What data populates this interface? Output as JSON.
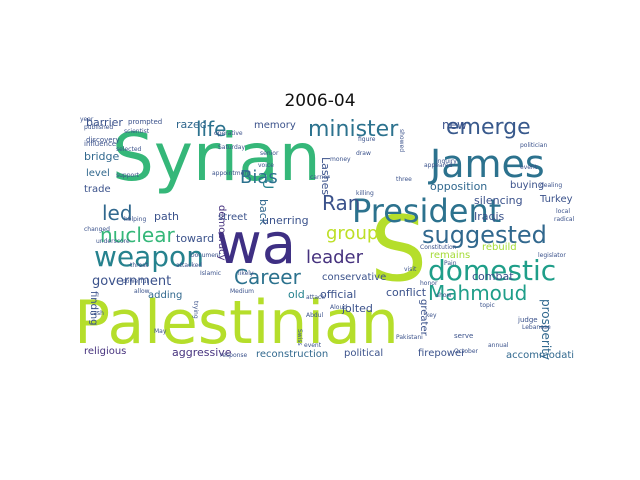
{
  "title": "2006-04",
  "words": [
    {
      "text": "Palestinian",
      "color": "#b5de2b"
    },
    {
      "text": "Syrian",
      "color": "#35b779"
    },
    {
      "text": "wa",
      "color": "#3e2f83"
    },
    {
      "text": "S",
      "color": "#b5de2b"
    },
    {
      "text": "James",
      "color": "#2c728e"
    },
    {
      "text": "President",
      "color": "#2c728e"
    },
    {
      "text": "domestic",
      "color": "#1f9e89"
    },
    {
      "text": "weapon",
      "color": "#26828e"
    },
    {
      "text": "suggested",
      "color": "#31688e"
    },
    {
      "text": "emerge",
      "color": "#38598c"
    },
    {
      "text": "minister",
      "color": "#2c728e"
    },
    {
      "text": "life",
      "color": "#2c728e"
    },
    {
      "text": "Career",
      "color": "#2c728e"
    },
    {
      "text": "nuclear",
      "color": "#35b779"
    },
    {
      "text": "Mahmoud",
      "color": "#1f9e89"
    },
    {
      "text": "led",
      "color": "#31688e"
    },
    {
      "text": "Ran",
      "color": "#3b528b"
    },
    {
      "text": "Bias",
      "color": "#2c728e"
    },
    {
      "text": "group",
      "color": "#bddf26"
    },
    {
      "text": "leader",
      "color": "#46327e"
    },
    {
      "text": "government",
      "color": "#3b528b"
    },
    {
      "text": "U",
      "color": "#26828e"
    },
    {
      "text": "barrier",
      "color": "#3b528b"
    },
    {
      "text": "razed",
      "color": "#31688e"
    },
    {
      "text": "memory",
      "color": "#3b528b"
    },
    {
      "text": "new",
      "color": "#3b528b"
    },
    {
      "text": "bridge",
      "color": "#31688e"
    },
    {
      "text": "level",
      "color": "#31688e"
    },
    {
      "text": "trade",
      "color": "#3b528b"
    },
    {
      "text": "path",
      "color": "#3b528b"
    },
    {
      "text": "toward",
      "color": "#3b528b"
    },
    {
      "text": "democracy",
      "color": "#46327e"
    },
    {
      "text": "street",
      "color": "#3b528b"
    },
    {
      "text": "back",
      "color": "#31688e"
    },
    {
      "text": "unerring",
      "color": "#3b528b"
    },
    {
      "text": "Lashes",
      "color": "#3b528b"
    },
    {
      "text": "opposition",
      "color": "#31688e"
    },
    {
      "text": "buying",
      "color": "#3b528b"
    },
    {
      "text": "Turkey",
      "color": "#3b528b"
    },
    {
      "text": "silencing",
      "color": "#3b528b"
    },
    {
      "text": "Iraqis",
      "color": "#3b528b"
    },
    {
      "text": "rebuild",
      "color": "#a5db36"
    },
    {
      "text": "remains",
      "color": "#a5db36"
    },
    {
      "text": "combat",
      "color": "#3b528b"
    },
    {
      "text": "conservative",
      "color": "#3b528b"
    },
    {
      "text": "official",
      "color": "#3b528b"
    },
    {
      "text": "old",
      "color": "#26828e"
    },
    {
      "text": "adding",
      "color": "#31688e"
    },
    {
      "text": "finding",
      "color": "#3b528b"
    },
    {
      "text": "conflict",
      "color": "#3b528b"
    },
    {
      "text": "jolted",
      "color": "#3b528b"
    },
    {
      "text": "greater",
      "color": "#3b528b"
    },
    {
      "text": "prosperity",
      "color": "#31688e"
    },
    {
      "text": "religious",
      "color": "#46327e"
    },
    {
      "text": "aggressive",
      "color": "#46327e"
    },
    {
      "text": "reconstruction",
      "color": "#31688e"
    },
    {
      "text": "political",
      "color": "#3b528b"
    },
    {
      "text": "firepower",
      "color": "#3b528b"
    },
    {
      "text": "accommodation",
      "color": "#31688e"
    },
    {
      "text": "prompted",
      "color": "#3b528b"
    },
    {
      "text": "discovery",
      "color": "#3b528b"
    },
    {
      "text": "influence",
      "color": "#3b528b"
    },
    {
      "text": "published",
      "color": "#3b528b"
    },
    {
      "text": "changed",
      "color": "#3b528b"
    },
    {
      "text": "helping",
      "color": "#3b528b"
    },
    {
      "text": "support",
      "color": "#3b528b"
    },
    {
      "text": "threat",
      "color": "#3b528b"
    },
    {
      "text": "attacked",
      "color": "#3b528b"
    },
    {
      "text": "powerful",
      "color": "#3b528b"
    },
    {
      "text": "Islamic",
      "color": "#3b528b"
    },
    {
      "text": "likely",
      "color": "#3b528b"
    },
    {
      "text": "attack",
      "color": "#3b528b"
    },
    {
      "text": "honor",
      "color": "#3b528b"
    },
    {
      "text": "show",
      "color": "#3b528b"
    },
    {
      "text": "key",
      "color": "#3b528b"
    },
    {
      "text": "visit",
      "color": "#3b528b"
    },
    {
      "text": "Constitution",
      "color": "#3b528b"
    },
    {
      "text": "inquiry",
      "color": "#3b528b"
    },
    {
      "text": "appeared",
      "color": "#3b528b"
    },
    {
      "text": "carrier",
      "color": "#3b528b"
    },
    {
      "text": "voice",
      "color": "#3b528b"
    },
    {
      "text": "senior",
      "color": "#3b528b"
    },
    {
      "text": "killing",
      "color": "#3b528b"
    },
    {
      "text": "money",
      "color": "#3b528b"
    },
    {
      "text": "judge",
      "color": "#3b528b"
    },
    {
      "text": "radical",
      "color": "#3b528b"
    },
    {
      "text": "local",
      "color": "#3b528b"
    },
    {
      "text": "dealing",
      "color": "#3b528b"
    },
    {
      "text": "Lebanese",
      "color": "#3b528b"
    },
    {
      "text": "annual",
      "color": "#3b528b"
    },
    {
      "text": "serve",
      "color": "#3b528b"
    },
    {
      "text": "Document",
      "color": "#3b528b"
    },
    {
      "text": "appointment",
      "color": "#3b528b"
    },
    {
      "text": "Abdul",
      "color": "#3b528b"
    },
    {
      "text": "Aloud",
      "color": "#3b528b"
    },
    {
      "text": "Medium",
      "color": "#3b528b"
    },
    {
      "text": "event",
      "color": "#3b528b"
    },
    {
      "text": "selected",
      "color": "#3b528b"
    },
    {
      "text": "scientist",
      "color": "#3b528b"
    },
    {
      "text": "politician",
      "color": "#3b528b"
    },
    {
      "text": "legislator",
      "color": "#3b528b"
    },
    {
      "text": "Pain",
      "color": "#3b528b"
    },
    {
      "text": "response",
      "color": "#3b528b"
    },
    {
      "text": "allow",
      "color": "#3b528b"
    },
    {
      "text": "May",
      "color": "#3b528b"
    },
    {
      "text": "Pakistani",
      "color": "#3b528b"
    },
    {
      "text": "underscore",
      "color": "#3b528b"
    },
    {
      "text": "topic",
      "color": "#3b528b"
    },
    {
      "text": "three",
      "color": "#3b528b"
    },
    {
      "text": "operative",
      "color": "#3b528b"
    },
    {
      "text": "Saturday",
      "color": "#3b528b"
    },
    {
      "text": "figure",
      "color": "#3b528b"
    },
    {
      "text": "event",
      "color": "#3b528b"
    },
    {
      "text": "trying",
      "color": "#3b528b"
    },
    {
      "text": "October",
      "color": "#3b528b"
    },
    {
      "text": "showed",
      "color": "#3b528b"
    },
    {
      "text": "draw",
      "color": "#3b528b"
    },
    {
      "text": "cash",
      "color": "#3b528b"
    },
    {
      "text": "Swiss",
      "color": "#3b528b"
    },
    {
      "text": "year",
      "color": "#3b528b"
    }
  ]
}
